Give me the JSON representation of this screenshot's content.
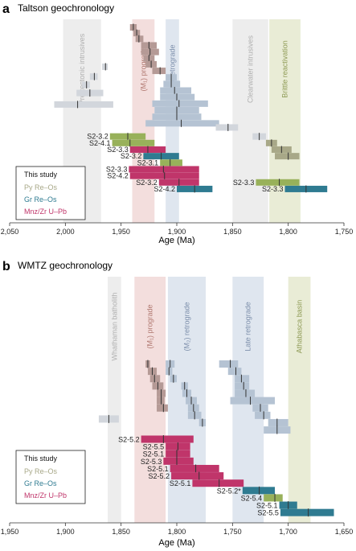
{
  "colors": {
    "grey": "#d2d6dc",
    "dark_grey": "#1a1a1a",
    "blue_grey": "#b5c3d3",
    "brown": "#b59a96",
    "olive": "#a8a888",
    "green": "#98b15a",
    "teal": "#2f7b91",
    "crimson": "#c0356a",
    "band_grey": "#ededed",
    "band_pink": "#f3dedd",
    "band_blue": "#dfe6ef",
    "band_olive": "#e9ecd6"
  },
  "chart_data": [
    {
      "type": "range",
      "panel_letter": "a",
      "title": "Taltson geochronology",
      "xlabel": "Age (Ma)",
      "xlim": [
        2050,
        1750
      ],
      "ticks": [
        2050,
        2000,
        1950,
        1900,
        1850,
        1800,
        1750
      ],
      "tick_labels": [
        "2,050",
        "2,000",
        "1,950",
        "1,900",
        "1,850",
        "1,800",
        "1,750"
      ],
      "bands": [
        {
          "label": "Pre-tectonic intrusives",
          "min": 1968,
          "max": 2002,
          "color": "band_grey"
        },
        {
          "label": "(M₁) prograde",
          "min": 1920,
          "max": 1940,
          "color": "band_pink"
        },
        {
          "label": "(M₂) retrograde",
          "min": 1898,
          "max": 1910,
          "color": "band_blue"
        },
        {
          "label": "Clearwater intrusives",
          "min": 1818,
          "max": 1850,
          "color": "band_grey"
        },
        {
          "label": "Brittle reactivation",
          "min": 1789,
          "max": 1817,
          "color": "band_olive"
        }
      ],
      "legend": {
        "title": "This study",
        "entries": [
          {
            "label": "Py Re–Os",
            "color": "olive"
          },
          {
            "label": "Gr Re–Os",
            "color": "teal"
          },
          {
            "label": "Mnz/Zr U–Pb",
            "color": "crimson"
          }
        ]
      },
      "bars": [
        {
          "min": 1936,
          "max": 1942,
          "mean": 1939,
          "row": 0,
          "color": "brown"
        },
        {
          "min": 1933,
          "max": 1939,
          "mean": 1936,
          "row": 0.7,
          "color": "brown"
        },
        {
          "min": 1930,
          "max": 1937,
          "mean": 1934,
          "row": 1.4,
          "color": "brown"
        },
        {
          "min": 1918,
          "max": 1932,
          "mean": 1925,
          "row": 2.2,
          "color": "brown"
        },
        {
          "min": 1916,
          "max": 1932,
          "mean": 1924,
          "row": 3.0,
          "color": "brown"
        },
        {
          "min": 1920,
          "max": 1930,
          "mean": 1925,
          "row": 3.8,
          "color": "brown"
        },
        {
          "min": 1918,
          "max": 1928,
          "mean": 1923,
          "row": 4.5,
          "color": "brown"
        },
        {
          "min": 1910,
          "max": 1922,
          "mean": 1915,
          "row": 5.3,
          "color": "brown"
        },
        {
          "min": 1900,
          "max": 1910,
          "mean": 1905,
          "row": 6.1,
          "color": "blue_grey"
        },
        {
          "min": 1897,
          "max": 1912,
          "mean": 1905,
          "row": 6.9,
          "color": "blue_grey"
        },
        {
          "min": 1887,
          "max": 1915,
          "mean": 1902,
          "row": 7.7,
          "color": "blue_grey"
        },
        {
          "min": 1884,
          "max": 1915,
          "mean": 1900,
          "row": 8.5,
          "color": "blue_grey"
        },
        {
          "min": 1872,
          "max": 1922,
          "mean": 1898,
          "row": 9.3,
          "color": "blue_grey"
        },
        {
          "min": 1880,
          "max": 1920,
          "mean": 1900,
          "row": 10.1,
          "color": "blue_grey"
        },
        {
          "min": 1878,
          "max": 1922,
          "mean": 1900,
          "row": 10.9,
          "color": "blue_grey"
        },
        {
          "min": 1862,
          "max": 1928,
          "mean": 1896,
          "row": 11.7,
          "color": "blue_grey"
        },
        {
          "min": 1962,
          "max": 1967,
          "mean": 1964,
          "row": 4.8,
          "color": "grey"
        },
        {
          "min": 1971,
          "max": 1978,
          "mean": 1974,
          "row": 6.0,
          "color": "grey"
        },
        {
          "min": 1978,
          "max": 1985,
          "mean": 1981,
          "row": 7.0,
          "color": "grey"
        },
        {
          "min": 1966,
          "max": 1990,
          "mean": 1978,
          "row": 8.0,
          "color": "grey"
        },
        {
          "min": 1957,
          "max": 2010,
          "mean": 1989,
          "row": 9.4,
          "color": "grey"
        },
        {
          "min": 1845,
          "max": 1865,
          "mean": 1854,
          "row": 12.2,
          "color": "grey"
        },
        {
          "min": 1820,
          "max": 1832,
          "mean": 1826,
          "row": 13.3,
          "color": "grey"
        },
        {
          "min": 1810,
          "max": 1820,
          "mean": 1815,
          "row": 14.1,
          "color": "olive"
        },
        {
          "min": 1797,
          "max": 1815,
          "mean": 1806,
          "row": 14.9,
          "color": "olive"
        },
        {
          "min": 1790,
          "max": 1812,
          "mean": 1800,
          "row": 15.7,
          "color": "olive"
        },
        {
          "min": 1928,
          "max": 1960,
          "mean": 1944,
          "row": 13.3,
          "label": "S2-3.2",
          "color": "green"
        },
        {
          "min": 1920,
          "max": 1958,
          "mean": 1942,
          "row": 14.1,
          "label": "S2-4.1",
          "color": "green"
        },
        {
          "min": 1910,
          "max": 1942,
          "mean": 1926,
          "row": 14.9,
          "label": "S2-3.3",
          "color": "crimson"
        },
        {
          "min": 1898,
          "max": 1930,
          "mean": 1914,
          "row": 15.7,
          "label": "S2-3.2",
          "color": "teal"
        },
        {
          "min": 1895,
          "max": 1915,
          "mean": 1906,
          "row": 16.5,
          "label": "S2-3.1",
          "color": "green"
        },
        {
          "min": 1880,
          "max": 1943,
          "mean": 1912,
          "row": 17.3,
          "label": "S2-3.3",
          "color": "crimson"
        },
        {
          "min": 1880,
          "max": 1942,
          "mean": 1911,
          "row": 18.1,
          "label": "S2-4.2",
          "color": "crimson"
        },
        {
          "min": 1880,
          "max": 1916,
          "mean": 1898,
          "row": 18.9,
          "label": "S2-3.2",
          "color": "crimson"
        },
        {
          "min": 1868,
          "max": 1900,
          "mean": 1884,
          "row": 19.7,
          "label": "S2-4.2",
          "color": "teal"
        },
        {
          "min": 1790,
          "max": 1829,
          "mean": 1808,
          "row": 18.9,
          "label": "S2-3.3",
          "color": "green"
        },
        {
          "min": 1765,
          "max": 1803,
          "mean": 1784,
          "row": 19.7,
          "label": "S2-3.3",
          "color": "teal"
        }
      ]
    },
    {
      "type": "range",
      "panel_letter": "b",
      "title": "WMTZ geochronology",
      "xlabel": "Age (Ma)",
      "xlim": [
        1950,
        1650
      ],
      "ticks": [
        1950,
        1900,
        1850,
        1800,
        1750,
        1700,
        1650
      ],
      "tick_labels": [
        "1,950",
        "1,900",
        "1,850",
        "1,800",
        "1,750",
        "1,700",
        "1,650"
      ],
      "bands": [
        {
          "label": "Whathaman batholith",
          "min": 1850,
          "max": 1862,
          "color": "band_grey"
        },
        {
          "label": "(M₁) prograde",
          "min": 1810,
          "max": 1838,
          "color": "band_pink"
        },
        {
          "label": "(M₂) retrograde",
          "min": 1774,
          "max": 1808,
          "color": "band_blue"
        },
        {
          "label": "Late retrograde",
          "min": 1722,
          "max": 1750,
          "color": "band_blue"
        },
        {
          "label": "Athabasca basin",
          "min": 1680,
          "max": 1700,
          "color": "band_olive"
        }
      ],
      "legend": {
        "title": "This study",
        "entries": [
          {
            "label": "Py Re–Os",
            "color": "olive"
          },
          {
            "label": "Gr Re–Os",
            "color": "teal"
          },
          {
            "label": "Mnz/Zr U–Pb",
            "color": "crimson"
          }
        ]
      },
      "bars": [
        {
          "min": 1824,
          "max": 1828,
          "mean": 1826,
          "row": 0,
          "color": "brown"
        },
        {
          "min": 1818,
          "max": 1826,
          "mean": 1822,
          "row": 0.8,
          "color": "brown"
        },
        {
          "min": 1815,
          "max": 1824,
          "mean": 1820,
          "row": 1.6,
          "color": "brown"
        },
        {
          "min": 1812,
          "max": 1822,
          "mean": 1817,
          "row": 2.4,
          "color": "brown"
        },
        {
          "min": 1810,
          "max": 1818,
          "mean": 1814,
          "row": 3.2,
          "color": "brown"
        },
        {
          "min": 1811,
          "max": 1818,
          "mean": 1814,
          "row": 4.0,
          "color": "brown"
        },
        {
          "min": 1808,
          "max": 1818,
          "mean": 1812,
          "row": 4.8,
          "color": "brown"
        },
        {
          "min": 1802,
          "max": 1810,
          "mean": 1806,
          "row": 0,
          "color": "blue_grey"
        },
        {
          "min": 1804,
          "max": 1810,
          "mean": 1807,
          "row": 0.8,
          "color": "blue_grey"
        },
        {
          "min": 1800,
          "max": 1806,
          "mean": 1803,
          "row": 1.6,
          "color": "blue_grey"
        },
        {
          "min": 1790,
          "max": 1796,
          "mean": 1793,
          "row": 2.4,
          "color": "blue_grey"
        },
        {
          "min": 1787,
          "max": 1795,
          "mean": 1791,
          "row": 3.2,
          "color": "blue_grey"
        },
        {
          "min": 1782,
          "max": 1792,
          "mean": 1787,
          "row": 4.0,
          "color": "blue_grey"
        },
        {
          "min": 1780,
          "max": 1790,
          "mean": 1785,
          "row": 4.8,
          "color": "blue_grey"
        },
        {
          "min": 1778,
          "max": 1790,
          "mean": 1784,
          "row": 5.6,
          "color": "blue_grey"
        },
        {
          "min": 1774,
          "max": 1780,
          "mean": 1777,
          "row": 6.4,
          "color": "blue_grey"
        },
        {
          "min": 1745,
          "max": 1762,
          "mean": 1752,
          "row": 0,
          "color": "blue_grey"
        },
        {
          "min": 1742,
          "max": 1754,
          "mean": 1747,
          "row": 0.8,
          "color": "blue_grey"
        },
        {
          "min": 1735,
          "max": 1748,
          "mean": 1742,
          "row": 1.6,
          "color": "blue_grey"
        },
        {
          "min": 1735,
          "max": 1748,
          "mean": 1740,
          "row": 2.4,
          "color": "blue_grey"
        },
        {
          "min": 1730,
          "max": 1748,
          "mean": 1738,
          "row": 3.2,
          "color": "blue_grey"
        },
        {
          "min": 1712,
          "max": 1752,
          "mean": 1734,
          "row": 4.0,
          "color": "blue_grey"
        },
        {
          "min": 1718,
          "max": 1732,
          "mean": 1725,
          "row": 4.8,
          "color": "blue_grey"
        },
        {
          "min": 1716,
          "max": 1730,
          "mean": 1722,
          "row": 5.6,
          "color": "blue_grey"
        },
        {
          "min": 1700,
          "max": 1718,
          "mean": 1710,
          "row": 6.4,
          "color": "blue_grey"
        },
        {
          "min": 1698,
          "max": 1722,
          "mean": 1710,
          "row": 7.2,
          "color": "blue_grey"
        },
        {
          "min": 1852,
          "max": 1870,
          "mean": 1861,
          "row": 6.0,
          "color": "grey"
        },
        {
          "min": 1785,
          "max": 1832,
          "mean": 1812,
          "row": 8.2,
          "label": "S2-5.2",
          "color": "crimson"
        },
        {
          "min": 1788,
          "max": 1810,
          "mean": 1799,
          "row": 9.0,
          "label": "S2-5.5",
          "color": "crimson"
        },
        {
          "min": 1788,
          "max": 1810,
          "mean": 1800,
          "row": 9.8,
          "label": "S2-5.1",
          "color": "crimson"
        },
        {
          "min": 1785,
          "max": 1812,
          "mean": 1800,
          "row": 10.6,
          "label": "S2-5.3",
          "color": "crimson"
        },
        {
          "min": 1762,
          "max": 1806,
          "mean": 1783,
          "row": 11.4,
          "label": "S2-5.1",
          "color": "crimson"
        },
        {
          "min": 1758,
          "max": 1805,
          "mean": 1780,
          "row": 12.2,
          "label": "S2-5.2",
          "color": "crimson"
        },
        {
          "min": 1740,
          "max": 1786,
          "mean": 1762,
          "row": 13.0,
          "label": "S2-5.1",
          "color": "crimson"
        },
        {
          "min": 1712,
          "max": 1741,
          "mean": 1726,
          "row": 13.8,
          "label": "S2-5.2*",
          "color": "teal"
        },
        {
          "min": 1705,
          "max": 1722,
          "mean": 1712,
          "row": 14.6,
          "label": "S2-5.4",
          "color": "green"
        },
        {
          "min": 1692,
          "max": 1708,
          "mean": 1700,
          "row": 15.4,
          "label": "S2-5.1",
          "color": "teal"
        },
        {
          "min": 1659,
          "max": 1707,
          "mean": 1682,
          "row": 16.2,
          "label": "S2-5.5",
          "color": "teal"
        }
      ]
    }
  ]
}
